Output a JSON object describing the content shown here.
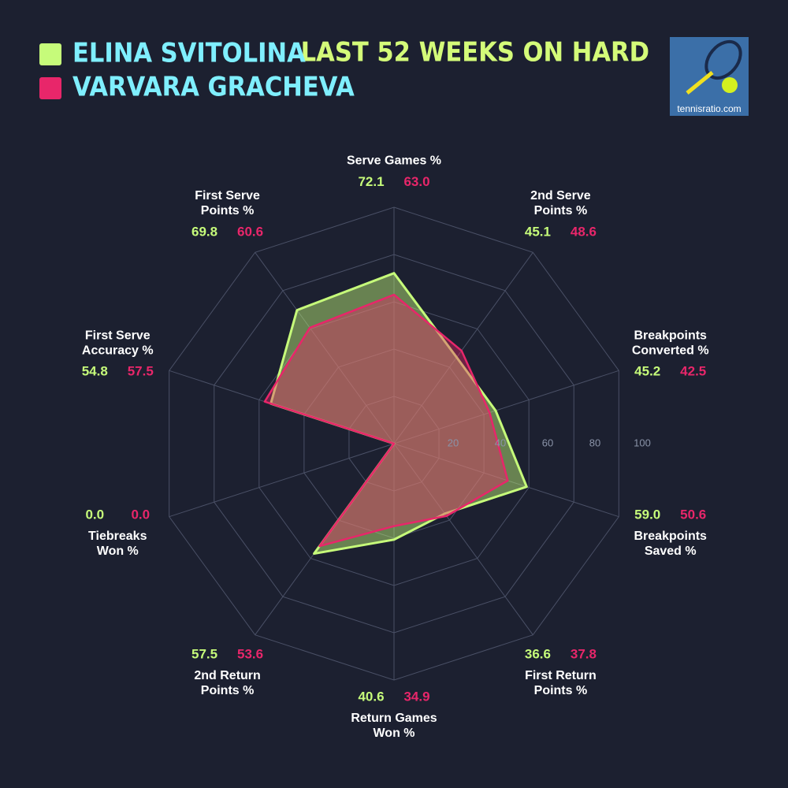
{
  "chart_data": {
    "type": "radar",
    "title": "LAST 52 WEEKS ON HARD",
    "categories": [
      [
        "Serve Games %"
      ],
      [
        "2nd Serve",
        "Points %"
      ],
      [
        "Breakpoints",
        "Converted %"
      ],
      [
        "Breakpoints",
        "Saved %"
      ],
      [
        "First Return",
        "Points %"
      ],
      [
        "Return Games",
        "Won %"
      ],
      [
        "2nd Return",
        "Points %"
      ],
      [
        "Tiebreaks",
        "Won %"
      ],
      [
        "First Serve",
        "Accuracy %"
      ],
      [
        "First Serve",
        "Points %"
      ]
    ],
    "series": [
      {
        "name": "ELINA SVITOLINA",
        "color": "#c6fb7a",
        "values": [
          72.1,
          45.1,
          45.2,
          59.0,
          36.6,
          40.6,
          57.5,
          0.0,
          54.8,
          69.8
        ],
        "value_labels": [
          "72.1",
          "45.1",
          "45.2",
          "59.0",
          "36.6",
          "40.6",
          "57.5",
          "0.0",
          "54.8",
          "69.8"
        ]
      },
      {
        "name": "VARVARA GRACHEVA",
        "color": "#e8266a",
        "values": [
          63.0,
          48.6,
          42.5,
          50.6,
          37.8,
          34.9,
          53.6,
          0.0,
          57.5,
          60.6
        ],
        "value_labels": [
          "63.0",
          "48.6",
          "42.5",
          "50.6",
          "37.8",
          "34.9",
          "53.6",
          "0.0",
          "57.5",
          "60.6"
        ]
      }
    ],
    "rlim": [
      0,
      100
    ],
    "rticks": [
      20,
      40,
      60,
      80,
      100
    ]
  },
  "logo": {
    "text": "tennisratio.com"
  }
}
